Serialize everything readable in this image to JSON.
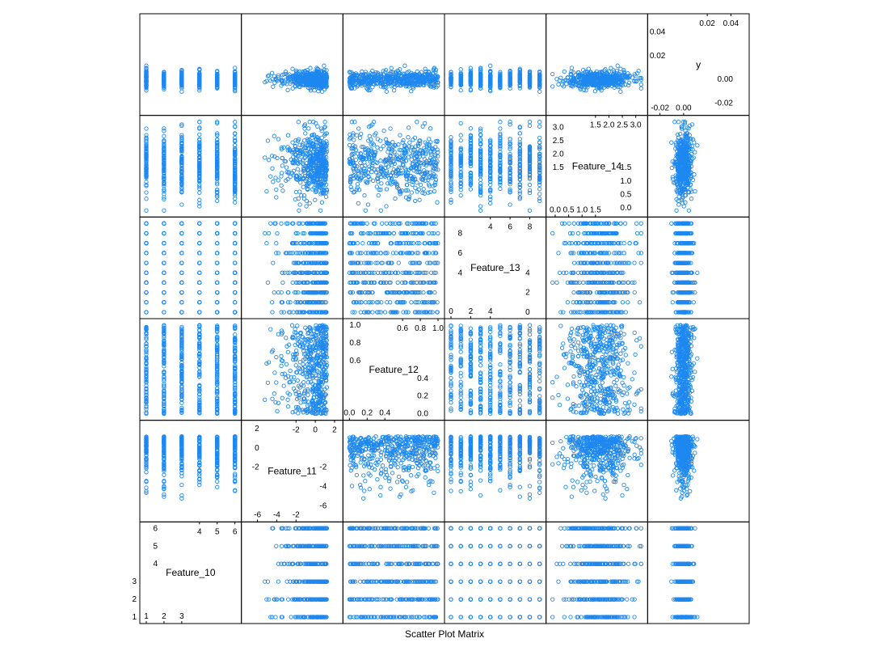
{
  "chart_data": {
    "type": "scatter",
    "subtype": "scatter-plot-matrix",
    "xlabel": "Scatter Plot Matrix",
    "point_color": "#1E88F0",
    "marker": "open-circle",
    "variables": [
      {
        "name": "Feature_10",
        "range": [
          1,
          6
        ],
        "ticks_a": [
          "1",
          "2",
          "3"
        ],
        "ticks_b": [
          "4",
          "5",
          "6"
        ],
        "ticks_c": [
          "1",
          "2",
          "3"
        ],
        "ticks_d": [
          "4",
          "5",
          "6"
        ],
        "discrete": [
          1,
          2,
          3,
          4,
          5,
          6
        ]
      },
      {
        "name": "Feature_11",
        "range": [
          -7,
          2.2
        ],
        "ticks_a": [
          "-6",
          "-4",
          "-2"
        ],
        "ticks_b": [
          "-2",
          "0",
          "2"
        ],
        "ticks_c": [
          "-6",
          "-4",
          "-2"
        ],
        "ticks_d": [
          "-2",
          "0",
          "2"
        ]
      },
      {
        "name": "Feature_12",
        "range": [
          0,
          1
        ],
        "ticks_a": [
          "0.0",
          "0.2",
          "0.4"
        ],
        "ticks_b": [
          "0.6",
          "0.8",
          "1.0"
        ],
        "ticks_c": [
          "0.0",
          "0.2",
          "0.4"
        ],
        "ticks_d": [
          "0.6",
          "0.8",
          "1.0"
        ]
      },
      {
        "name": "Feature_13",
        "range": [
          0,
          9
        ],
        "ticks_a": [
          "0",
          "2",
          "4"
        ],
        "ticks_b": [
          "4",
          "6",
          "8"
        ],
        "ticks_c": [
          "0",
          "2",
          "4"
        ],
        "ticks_d": [
          "4",
          "6",
          "8"
        ],
        "discrete": [
          0,
          1,
          2,
          3,
          4,
          5,
          6,
          7,
          8,
          9
        ]
      },
      {
        "name": "Feature_14",
        "range": [
          -0.1,
          3.2
        ],
        "ticks_a": [
          "0.0",
          "0.5",
          "1.0",
          "1.5"
        ],
        "ticks_b": [
          "1.5",
          "2.0",
          "2.5",
          "3.0"
        ],
        "ticks_c": [
          "0.0",
          "0.5",
          "1.0",
          "1.5"
        ],
        "ticks_d": [
          "1.5",
          "2.0",
          "2.5",
          "3.0"
        ]
      },
      {
        "name": "y",
        "range": [
          -0.025,
          0.05
        ],
        "ticks_a": [
          "-0.02",
          "0.00"
        ],
        "ticks_b": [
          "0.02",
          "0.04"
        ],
        "ticks_c": [
          "-0.02",
          "0.00"
        ],
        "ticks_d": [
          "0.02",
          "0.04"
        ]
      }
    ]
  }
}
